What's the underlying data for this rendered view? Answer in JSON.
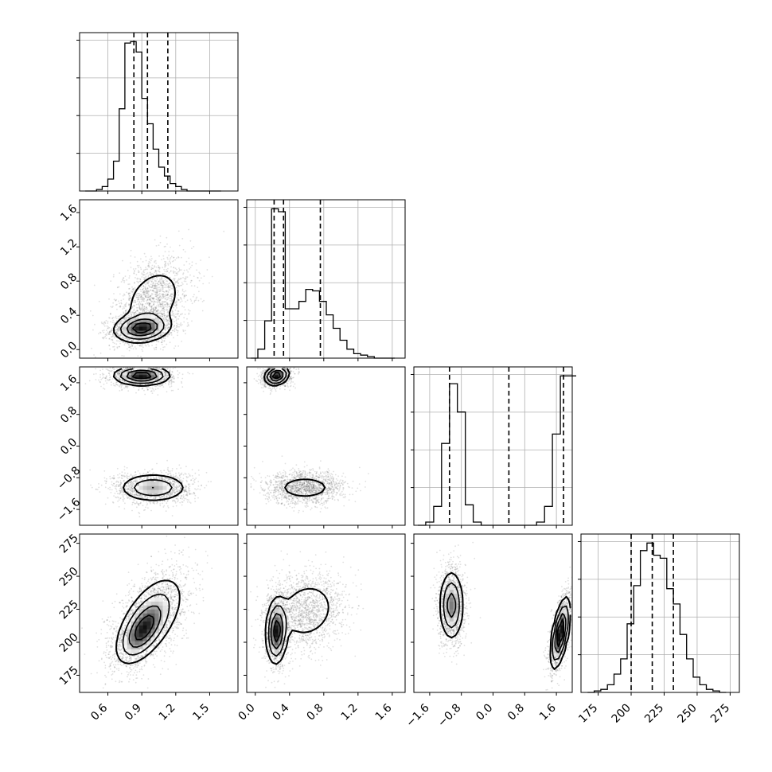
{
  "chart_data": {
    "type": "corner",
    "description_free": true,
    "grid": true,
    "parameters": [
      {
        "index": 0,
        "range": [
          0.35,
          1.75
        ],
        "ticks": [
          0.6,
          0.9,
          1.2,
          1.5
        ],
        "tick_labels": [
          "0.6",
          "0.9",
          "1.2",
          "1.5"
        ],
        "quantiles": [
          0.83,
          0.95,
          1.13
        ]
      },
      {
        "index": 1,
        "range": [
          -0.1,
          1.75
        ],
        "ticks": [
          0.0,
          0.4,
          0.8,
          1.2,
          1.6
        ],
        "tick_labels": [
          "0.0",
          "0.4",
          "0.8",
          "1.2",
          "1.6"
        ],
        "quantiles": [
          0.22,
          0.33,
          0.76
        ]
      },
      {
        "index": 2,
        "range": [
          -2.0,
          2.0
        ],
        "ticks": [
          -1.6,
          -0.8,
          0.0,
          0.8,
          1.6
        ],
        "tick_labels": [
          "−1.6",
          "−0.8",
          "0.0",
          "0.8",
          "1.6"
        ],
        "quantiles": [
          -1.1,
          0.4,
          1.78
        ]
      },
      {
        "index": 3,
        "range": [
          162,
          282
        ],
        "ticks": [
          175,
          200,
          225,
          250,
          275
        ],
        "tick_labels": [
          "175",
          "200",
          "225",
          "250",
          "275"
        ],
        "quantiles": [
          200,
          216,
          232
        ]
      }
    ],
    "histograms": [
      {
        "param": 0,
        "bin_edges": [
          0.4,
          0.45,
          0.5,
          0.55,
          0.6,
          0.65,
          0.7,
          0.75,
          0.8,
          0.85,
          0.9,
          0.95,
          1.0,
          1.05,
          1.1,
          1.15,
          1.2,
          1.25,
          1.3,
          1.35,
          1.4,
          1.45,
          1.5,
          1.55,
          1.6
        ],
        "counts": [
          0.0,
          0.0,
          0.01,
          0.03,
          0.08,
          0.2,
          0.55,
          0.99,
          1.0,
          0.93,
          0.62,
          0.45,
          0.28,
          0.16,
          0.1,
          0.05,
          0.03,
          0.01,
          0.0,
          0.0,
          0.0,
          0.0,
          0.0,
          0.0
        ]
      },
      {
        "param": 1,
        "bin_edges": [
          -0.05,
          0.03,
          0.11,
          0.19,
          0.27,
          0.35,
          0.43,
          0.51,
          0.59,
          0.67,
          0.75,
          0.83,
          0.91,
          0.99,
          1.07,
          1.15,
          1.23,
          1.31,
          1.39,
          1.47,
          1.55,
          1.63
        ],
        "counts": [
          0.0,
          0.06,
          0.25,
          1.0,
          0.98,
          0.33,
          0.33,
          0.38,
          0.46,
          0.45,
          0.38,
          0.29,
          0.2,
          0.12,
          0.06,
          0.03,
          0.02,
          0.01,
          0.0,
          0.0,
          0.0
        ]
      },
      {
        "param": 2,
        "bin_edges": [
          -1.9,
          -1.7,
          -1.5,
          -1.3,
          -1.1,
          -0.9,
          -0.7,
          -0.5,
          -0.3,
          -0.1,
          0.1,
          0.3,
          0.5,
          0.7,
          0.9,
          1.1,
          1.3,
          1.5,
          1.7,
          1.9,
          2.1
        ],
        "counts": [
          0.0,
          0.02,
          0.12,
          0.52,
          0.9,
          0.72,
          0.13,
          0.02,
          0.0,
          0.0,
          0.0,
          0.0,
          0.0,
          0.0,
          0.0,
          0.02,
          0.12,
          0.58,
          0.95,
          0.95
        ]
      },
      {
        "param": 3,
        "bin_edges": [
          167,
          172,
          177,
          182,
          187,
          192,
          197,
          202,
          207,
          212,
          217,
          222,
          227,
          232,
          237,
          242,
          247,
          252,
          257,
          262,
          267,
          272
        ],
        "counts": [
          0.0,
          0.01,
          0.02,
          0.05,
          0.12,
          0.22,
          0.45,
          0.7,
          0.93,
          0.98,
          0.9,
          0.88,
          0.68,
          0.58,
          0.38,
          0.22,
          0.1,
          0.05,
          0.02,
          0.01,
          0.0
        ]
      }
    ],
    "pair_clusters": [
      {
        "row": 1,
        "col": 0,
        "clusters": [
          {
            "center": [
              0.9,
              0.25
            ],
            "spread": [
              0.12,
              0.08
            ],
            "rho": 0.15,
            "weight": 0.5
          },
          {
            "center": [
              1.0,
              0.58
            ],
            "spread": [
              0.15,
              0.22
            ],
            "rho": 0.3,
            "weight": 0.5
          }
        ]
      },
      {
        "row": 2,
        "col": 0,
        "clusters": [
          {
            "center": [
              0.9,
              1.78
            ],
            "spread": [
              0.12,
              0.12
            ],
            "rho": 0.0,
            "weight": 0.5
          },
          {
            "center": [
              1.0,
              -1.05
            ],
            "spread": [
              0.15,
              0.18
            ],
            "rho": 0.0,
            "weight": 0.5
          }
        ]
      },
      {
        "row": 2,
        "col": 1,
        "clusters": [
          {
            "center": [
              0.25,
              1.78
            ],
            "spread": [
              0.07,
              0.12
            ],
            "rho": 0.2,
            "weight": 0.5
          },
          {
            "center": [
              0.58,
              -1.05
            ],
            "spread": [
              0.2,
              0.18
            ],
            "rho": 0.0,
            "weight": 0.5
          }
        ]
      },
      {
        "row": 3,
        "col": 0,
        "clusters": [
          {
            "center": [
              0.9,
              208
            ],
            "spread": [
              0.11,
              12
            ],
            "rho": 0.55,
            "weight": 0.5
          },
          {
            "center": [
              1.0,
              222
            ],
            "spread": [
              0.15,
              16
            ],
            "rho": 0.5,
            "weight": 0.5
          }
        ]
      },
      {
        "row": 3,
        "col": 1,
        "clusters": [
          {
            "center": [
              0.25,
              208
            ],
            "spread": [
              0.06,
              12
            ],
            "rho": 0.1,
            "weight": 0.5
          },
          {
            "center": [
              0.6,
              224
            ],
            "spread": [
              0.2,
              13
            ],
            "rho": 0.15,
            "weight": 0.5
          }
        ]
      },
      {
        "row": 3,
        "col": 2,
        "clusters": [
          {
            "center": [
              -1.05,
              228
            ],
            "spread": [
              0.15,
              13
            ],
            "rho": 0.0,
            "weight": 0.5
          },
          {
            "center": [
              1.7,
              207
            ],
            "spread": [
              0.12,
              13
            ],
            "rho": 0.6,
            "weight": 0.5
          }
        ]
      }
    ]
  }
}
